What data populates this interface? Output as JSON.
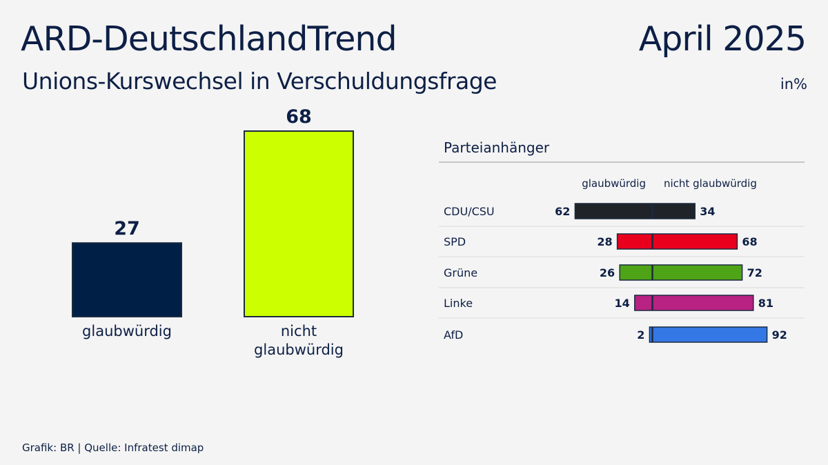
{
  "header": {
    "title": "ARD-DeutschlandTrend",
    "date": "April 2025",
    "subtitle": "Unions-Kurswechsel in Verschuldungsfrage",
    "unit": "in%"
  },
  "footer": {
    "source": "Grafik: BR | Quelle: Infratest dimap"
  },
  "chart_data": [
    {
      "type": "bar",
      "categories": [
        "glaubwürdig",
        "nicht glaubwürdig"
      ],
      "category_lines": [
        [
          "glaubwürdig"
        ],
        [
          "nicht",
          "glaubwürdig"
        ]
      ],
      "values": [
        27,
        68
      ],
      "colors": [
        "#001f47",
        "#ccff00"
      ],
      "ylim": [
        0,
        68
      ]
    },
    {
      "type": "bar",
      "title": "Parteianhänger",
      "orientation": "diverging-horizontal",
      "series_names": [
        "glaubwürdig",
        "nicht glaubwürdig"
      ],
      "categories": [
        "CDU/CSU",
        "SPD",
        "Grüne",
        "Linke",
        "AfD"
      ],
      "left_values": [
        62,
        28,
        26,
        14,
        2
      ],
      "right_values": [
        34,
        68,
        72,
        81,
        92
      ],
      "colors": [
        "#202428",
        "#e8001c",
        "#4ea416",
        "#b82282",
        "#3478e6"
      ]
    }
  ]
}
